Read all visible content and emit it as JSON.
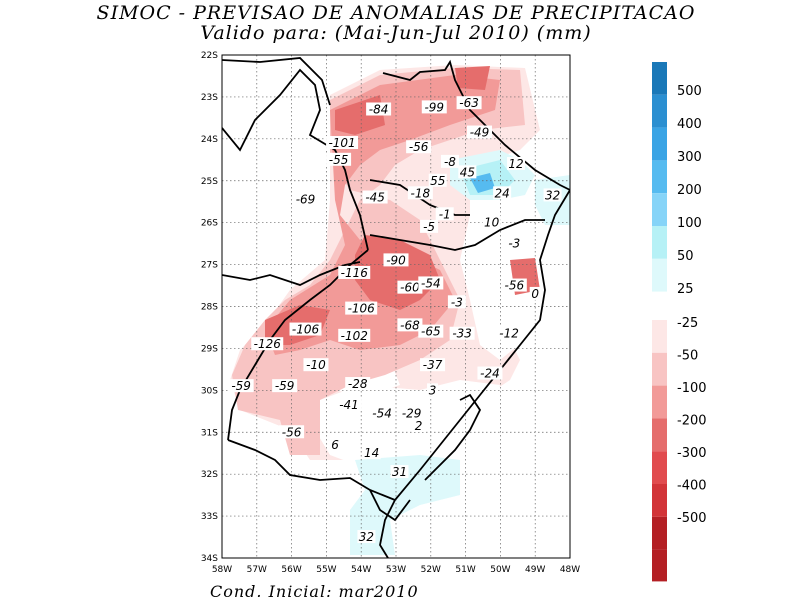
{
  "title_line1": "SIMOC - PREVISAO DE ANOMALIAS DE PRECIPITACAO",
  "title_line2": "Valido para: (Mai-Jun-Jul 2010) (mm)",
  "footer": "Cond. Inicial: mar2010",
  "map": {
    "lon_labels": [
      "58W",
      "57W",
      "56W",
      "55W",
      "54W",
      "53W",
      "52W",
      "51W",
      "50W",
      "49W",
      "48W"
    ],
    "lat_labels": [
      "22S",
      "23S",
      "24S",
      "25S",
      "26S",
      "27S",
      "28S",
      "29S",
      "30S",
      "31S",
      "32S",
      "33S",
      "34S"
    ],
    "gridlines": "dotted",
    "contour_labels": [
      {
        "text": "-84",
        "lon": -53.5,
        "lat": -23.3
      },
      {
        "text": "-99",
        "lon": -51.9,
        "lat": -23.25
      },
      {
        "text": "-63",
        "lon": -50.9,
        "lat": -23.15
      },
      {
        "text": "-49",
        "lon": -50.6,
        "lat": -23.85
      },
      {
        "text": "-101",
        "lon": -54.55,
        "lat": -24.1
      },
      {
        "text": "-55",
        "lon": -54.65,
        "lat": -24.5
      },
      {
        "text": "-56",
        "lon": -52.35,
        "lat": -24.2
      },
      {
        "text": "-8",
        "lon": -51.45,
        "lat": -24.55
      },
      {
        "text": "12",
        "lon": -49.55,
        "lat": -24.6
      },
      {
        "text": "45",
        "lon": -50.95,
        "lat": -24.8
      },
      {
        "text": "55",
        "lon": -51.8,
        "lat": -25.0
      },
      {
        "text": "-18",
        "lon": -52.3,
        "lat": -25.3
      },
      {
        "text": "24",
        "lon": -49.95,
        "lat": -25.3
      },
      {
        "text": "32",
        "lon": -48.5,
        "lat": -25.35
      },
      {
        "text": "-69",
        "lon": -55.6,
        "lat": -25.45
      },
      {
        "text": "-45",
        "lon": -53.6,
        "lat": -25.4
      },
      {
        "text": "-1",
        "lon": -51.6,
        "lat": -25.8
      },
      {
        "text": "10",
        "lon": -50.25,
        "lat": -26.0
      },
      {
        "text": "-5",
        "lon": -52.05,
        "lat": -26.1
      },
      {
        "text": "-3",
        "lon": -49.6,
        "lat": -26.5
      },
      {
        "text": "-90",
        "lon": -53.0,
        "lat": -26.9
      },
      {
        "text": "-116",
        "lon": -54.2,
        "lat": -27.2
      },
      {
        "text": "-60",
        "lon": -52.6,
        "lat": -27.55
      },
      {
        "text": "-54",
        "lon": -52.0,
        "lat": -27.45
      },
      {
        "text": "-56",
        "lon": -49.6,
        "lat": -27.5
      },
      {
        "text": "0",
        "lon": -49.0,
        "lat": -27.7
      },
      {
        "text": "-3",
        "lon": -51.25,
        "lat": -27.9
      },
      {
        "text": "-106",
        "lon": -54.0,
        "lat": -28.05
      },
      {
        "text": "-68",
        "lon": -52.6,
        "lat": -28.45
      },
      {
        "text": "-65",
        "lon": -52.0,
        "lat": -28.6
      },
      {
        "text": "-33",
        "lon": -51.1,
        "lat": -28.65
      },
      {
        "text": "-12",
        "lon": -49.75,
        "lat": -28.65
      },
      {
        "text": "-106",
        "lon": -55.6,
        "lat": -28.55
      },
      {
        "text": "-102",
        "lon": -54.2,
        "lat": -28.7
      },
      {
        "text": "-126",
        "lon": -56.7,
        "lat": -28.9
      },
      {
        "text": "-10",
        "lon": -55.3,
        "lat": -29.4
      },
      {
        "text": "-37",
        "lon": -51.95,
        "lat": -29.4
      },
      {
        "text": "-24",
        "lon": -50.3,
        "lat": -29.6
      },
      {
        "text": "-28",
        "lon": -54.1,
        "lat": -29.85
      },
      {
        "text": "-59",
        "lon": -57.45,
        "lat": -29.9
      },
      {
        "text": "-59",
        "lon": -56.2,
        "lat": -29.9
      },
      {
        "text": "3",
        "lon": -51.95,
        "lat": -30.0
      },
      {
        "text": "-41",
        "lon": -54.35,
        "lat": -30.35
      },
      {
        "text": "-54",
        "lon": -53.4,
        "lat": -30.55
      },
      {
        "text": "-29",
        "lon": -52.55,
        "lat": -30.55
      },
      {
        "text": "2",
        "lon": -52.35,
        "lat": -30.85
      },
      {
        "text": "-56",
        "lon": -56.0,
        "lat": -31.0
      },
      {
        "text": "6",
        "lon": -54.75,
        "lat": -31.3
      },
      {
        "text": "14",
        "lon": -53.7,
        "lat": -31.5
      },
      {
        "text": "31",
        "lon": -52.9,
        "lat": -31.95
      },
      {
        "text": "32",
        "lon": -53.85,
        "lat": -33.5
      }
    ]
  },
  "colorbar": {
    "positive_labels": [
      "500",
      "400",
      "300",
      "200",
      "100",
      "50",
      "25"
    ],
    "positive_colors": [
      "#1a78b8",
      "#2b8fd1",
      "#3aa4e5",
      "#56bbf0",
      "#86d4f8",
      "#b6f1f6",
      "#def9fb"
    ],
    "negative_labels": [
      "-25",
      "-50",
      "-100",
      "-200",
      "-300",
      "-400",
      "-500"
    ],
    "negative_colors": [
      "#fde7e6",
      "#f8c4c3",
      "#f29a98",
      "#e56d6c",
      "#e14b4e",
      "#d23438",
      "#b41f24"
    ]
  }
}
